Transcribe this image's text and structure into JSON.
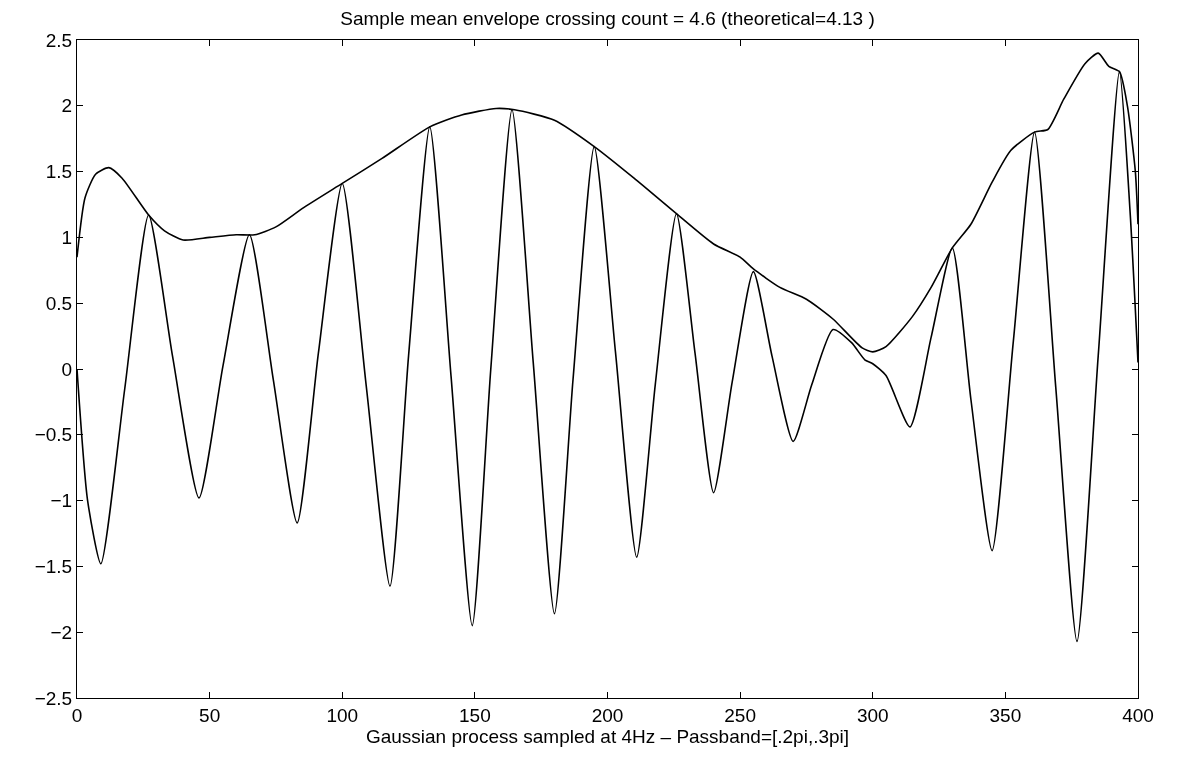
{
  "chart_data": {
    "type": "line",
    "title": "Sample mean envelope crossing count = 4.6 (theoretical=4.13 )",
    "xlabel": "Gaussian process sampled at 4Hz – Passband=[.2pi,.3pi]",
    "xlim": [
      0,
      400
    ],
    "xticks": [
      0,
      50,
      100,
      150,
      200,
      250,
      300,
      350,
      400
    ],
    "ylim": [
      -2.5,
      2.5
    ],
    "yticks": [
      {
        "value": -2.5,
        "label": "−2.5"
      },
      {
        "value": -2,
        "label": "−2"
      },
      {
        "value": -1.5,
        "label": "−1.5"
      },
      {
        "value": -1,
        "label": "−1"
      },
      {
        "value": -0.5,
        "label": "−0.5"
      },
      0,
      0.5,
      1,
      1.5,
      2,
      2.5
    ],
    "marker": "none",
    "line_style": "solid",
    "series": [
      {
        "color": "#000000",
        "x": [
          0,
          4,
          9,
          18,
          27,
          36,
          46,
          55,
          65,
          74,
          83,
          91,
          100,
          109,
          118,
          125,
          133,
          141,
          149,
          156,
          164,
          172,
          180,
          187,
          195,
          203,
          211,
          218,
          226,
          233,
          240,
          247,
          255,
          262,
          270,
          277,
          285,
          292,
          297,
          300,
          305,
          314,
          322,
          330,
          337,
          345,
          353,
          361,
          369,
          377,
          385,
          393,
          397,
          400
        ],
        "values": [
          0.0,
          -1.0,
          -1.48,
          -0.15,
          1.17,
          0.1,
          -0.98,
          0.02,
          1.02,
          -0.08,
          -1.17,
          0.12,
          1.41,
          -0.12,
          -1.65,
          0.1,
          1.84,
          -0.05,
          -1.95,
          0.0,
          1.97,
          0.05,
          -1.86,
          -0.08,
          1.69,
          0.13,
          -1.43,
          -0.12,
          1.18,
          0.12,
          -0.94,
          -0.1,
          0.74,
          0.1,
          -0.55,
          -0.12,
          0.3,
          0.2,
          0.07,
          0.04,
          -0.05,
          -0.44,
          0.24,
          0.92,
          -0.23,
          -1.38,
          0.21,
          1.8,
          -0.14,
          -2.07,
          0.1,
          2.26,
          1.2,
          0.05
        ]
      },
      {
        "color": "#000000",
        "x": [
          0,
          3,
          7,
          12,
          17,
          27,
          33,
          40,
          50,
          60,
          67,
          75,
          85,
          100,
          115,
          133,
          145,
          158,
          165,
          180,
          195,
          210,
          226,
          240,
          250,
          255,
          265,
          275,
          285,
          296,
          300,
          305,
          315,
          322,
          330,
          337,
          345,
          352,
          361,
          366,
          372,
          380,
          385,
          389,
          393,
          396,
          399,
          400
        ],
        "values": [
          0.85,
          1.3,
          1.48,
          1.53,
          1.45,
          1.17,
          1.05,
          0.98,
          1.0,
          1.02,
          1.02,
          1.08,
          1.22,
          1.41,
          1.6,
          1.84,
          1.93,
          1.98,
          1.97,
          1.89,
          1.69,
          1.45,
          1.18,
          0.95,
          0.85,
          0.76,
          0.62,
          0.53,
          0.38,
          0.16,
          0.13,
          0.17,
          0.4,
          0.62,
          0.92,
          1.1,
          1.42,
          1.66,
          1.8,
          1.82,
          2.05,
          2.32,
          2.4,
          2.3,
          2.26,
          2.0,
          1.5,
          1.1
        ]
      }
    ]
  }
}
